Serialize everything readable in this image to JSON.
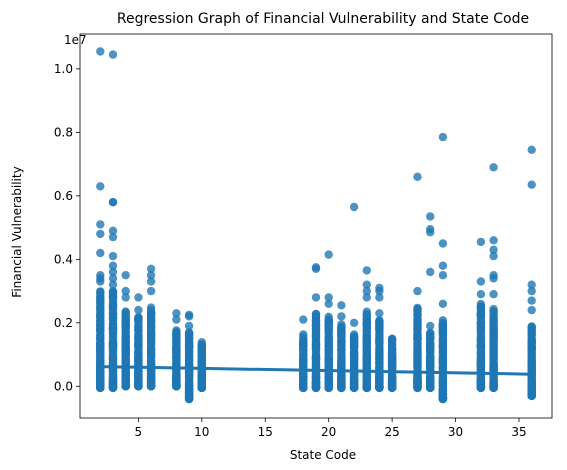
{
  "chart_data": {
    "type": "scatter",
    "title": "Regression Graph of Financial Vulnerability and State Code",
    "xlabel": "State Code",
    "ylabel": "Financial Vulnerability",
    "y_offset_label": "1e7",
    "xlim": [
      0.4,
      37.6
    ],
    "ylim": [
      -0.1,
      1.11
    ],
    "xticks": [
      5,
      10,
      15,
      20,
      25,
      30,
      35
    ],
    "yticks": [
      0.0,
      0.2,
      0.4,
      0.6,
      0.8,
      1.0
    ],
    "ytick_labels": [
      "0.0",
      "0.2",
      "0.4",
      "0.6",
      "0.8",
      "1.0"
    ],
    "colors": {
      "points": "#1f77b4",
      "line": "#1f77b4"
    },
    "regression": {
      "x0": 2,
      "y0": 0.062,
      "x1": 36,
      "y1": 0.038
    },
    "groups": [
      {
        "x": 2,
        "min": -0.005,
        "dense_max": 0.3,
        "outliers": [
          1.055,
          0.63,
          0.51,
          0.48,
          0.42,
          0.35,
          0.34,
          0.33
        ]
      },
      {
        "x": 3,
        "min": -0.005,
        "dense_max": 0.3,
        "outliers": [
          1.045,
          0.58,
          0.58,
          0.49,
          0.47,
          0.41,
          0.38,
          0.36,
          0.34,
          0.32
        ]
      },
      {
        "x": 4,
        "min": 0.0,
        "dense_max": 0.24,
        "outliers": [
          0.35,
          0.3,
          0.28
        ]
      },
      {
        "x": 5,
        "min": 0.0,
        "dense_max": 0.22,
        "outliers": [
          0.28,
          0.24
        ]
      },
      {
        "x": 6,
        "min": 0.0,
        "dense_max": 0.25,
        "outliers": [
          0.37,
          0.35,
          0.33,
          0.3
        ]
      },
      {
        "x": 8,
        "min": 0.0,
        "dense_max": 0.18,
        "outliers": [
          0.23,
          0.21
        ]
      },
      {
        "x": 9,
        "min": -0.04,
        "dense_max": 0.17,
        "outliers": [
          0.225,
          0.22,
          0.19
        ]
      },
      {
        "x": 10,
        "min": -0.005,
        "dense_max": 0.14,
        "outliers": []
      },
      {
        "x": 18,
        "min": -0.005,
        "dense_max": 0.17,
        "outliers": [
          0.21
        ]
      },
      {
        "x": 19,
        "min": -0.005,
        "dense_max": 0.23,
        "outliers": [
          0.375,
          0.37,
          0.28
        ]
      },
      {
        "x": 20,
        "min": -0.005,
        "dense_max": 0.22,
        "outliers": [
          0.415,
          0.28,
          0.26
        ]
      },
      {
        "x": 21,
        "min": -0.005,
        "dense_max": 0.2,
        "outliers": [
          0.255,
          0.22
        ]
      },
      {
        "x": 22,
        "min": -0.005,
        "dense_max": 0.17,
        "outliers": [
          0.565,
          0.2
        ]
      },
      {
        "x": 23,
        "min": -0.005,
        "dense_max": 0.24,
        "outliers": [
          0.365,
          0.32,
          0.3,
          0.28
        ]
      },
      {
        "x": 24,
        "min": -0.005,
        "dense_max": 0.21,
        "outliers": [
          0.31,
          0.3,
          0.28,
          0.23
        ]
      },
      {
        "x": 25,
        "min": -0.005,
        "dense_max": 0.15,
        "outliers": []
      },
      {
        "x": 27,
        "min": -0.005,
        "dense_max": 0.25,
        "outliers": [
          0.66,
          0.3
        ]
      },
      {
        "x": 28,
        "min": -0.005,
        "dense_max": 0.17,
        "outliers": [
          0.535,
          0.495,
          0.485,
          0.36,
          0.19
        ]
      },
      {
        "x": 29,
        "min": -0.04,
        "dense_max": 0.21,
        "outliers": [
          0.785,
          0.45,
          0.38,
          0.35,
          0.26
        ]
      },
      {
        "x": 32,
        "min": -0.005,
        "dense_max": 0.26,
        "outliers": [
          0.455,
          0.33,
          0.29
        ]
      },
      {
        "x": 33,
        "min": -0.005,
        "dense_max": 0.25,
        "outliers": [
          0.69,
          0.46,
          0.43,
          0.41,
          0.35,
          0.34,
          0.29
        ]
      },
      {
        "x": 36,
        "min": -0.03,
        "dense_max": 0.19,
        "outliers": [
          0.745,
          0.635,
          0.32,
          0.3,
          0.27,
          0.24
        ]
      }
    ]
  }
}
